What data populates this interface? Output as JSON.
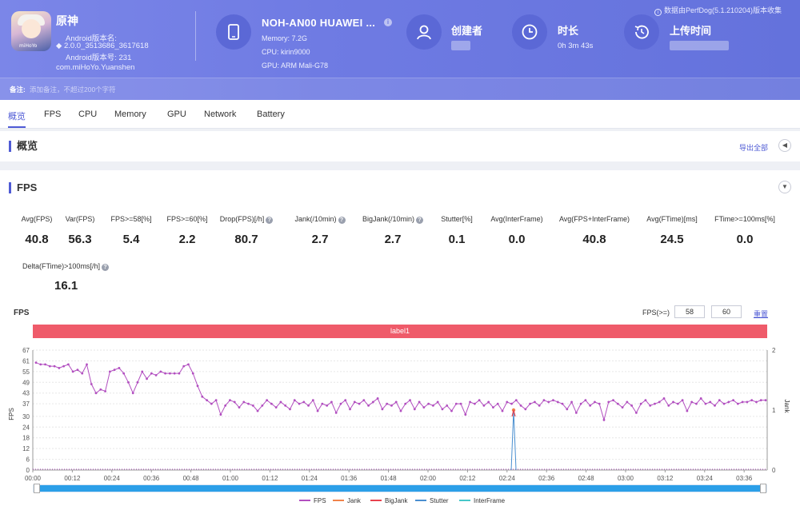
{
  "header": {
    "app_name": "原神",
    "version_name_label": "Android版本名:",
    "version_name": "2.0.0_3513686_3617618",
    "version_code": "Android版本号: 231",
    "package": "com.miHoYo.Yuanshen",
    "icon_tag": "miHoYo",
    "device_name": "NOH-AN00 HUAWEI ...",
    "memory": "Memory: 7.2G",
    "cpu": "CPU: kirin9000",
    "gpu": "GPU: ARM Mali-G78",
    "creator_label": "创建者",
    "duration_label": "时长",
    "duration_value": "0h 3m 43s",
    "upload_label": "上传时间",
    "source_note": "数据由PerfDog(5.1.210204)版本收集",
    "remark_label": "备注:",
    "remark_placeholder": "添加备注，不超过200个字符"
  },
  "tabs": [
    "概览",
    "FPS",
    "CPU",
    "Memory",
    "GPU",
    "Network",
    "Battery"
  ],
  "overview": {
    "title": "概览",
    "export": "导出全部"
  },
  "fps_section": {
    "title": "FPS",
    "metrics": [
      {
        "label": "Avg(FPS)",
        "value": "40.8",
        "help": false
      },
      {
        "label": "Var(FPS)",
        "value": "56.3",
        "help": false
      },
      {
        "label": "FPS>=58[%]",
        "value": "5.4",
        "help": false
      },
      {
        "label": "FPS>=60[%]",
        "value": "2.2",
        "help": false
      },
      {
        "label": "Drop(FPS)[/h]",
        "value": "80.7",
        "help": true
      },
      {
        "label": "Jank(/10min)",
        "value": "2.7",
        "help": true
      },
      {
        "label": "BigJank(/10min)",
        "value": "2.7",
        "help": true
      },
      {
        "label": "Stutter[%]",
        "value": "0.1",
        "help": false
      },
      {
        "label": "Avg(InterFrame)",
        "value": "0.0",
        "help": false
      },
      {
        "label": "Avg(FPS+InterFrame)",
        "value": "40.8",
        "help": false
      },
      {
        "label": "Avg(FTime)[ms]",
        "value": "24.5",
        "help": false
      },
      {
        "label": "FTime>=100ms[%]",
        "value": "0.0",
        "help": false
      }
    ],
    "metric2": {
      "label": "Delta(FTime)>100ms[/h]",
      "value": "16.1"
    },
    "chart_title": "FPS",
    "threshold_label": "FPS(>=)",
    "threshold_low": "58",
    "threshold_high": "60",
    "reset": "重置",
    "label_bar": "label1"
  },
  "chart_data": {
    "type": "line",
    "ylabel": "FPS",
    "ylabel_right": "Jank",
    "yticks": [
      "0",
      "6",
      "12",
      "18",
      "24",
      "30",
      "37",
      "43",
      "49",
      "55",
      "61",
      "67"
    ],
    "yticks_right": [
      "0",
      "1",
      "2"
    ],
    "ylim": [
      0,
      67
    ],
    "ylim_right": [
      0,
      2
    ],
    "xticks": [
      "00:00",
      "00:12",
      "00:24",
      "00:36",
      "00:48",
      "01:00",
      "01:12",
      "01:24",
      "01:36",
      "01:48",
      "02:00",
      "02:12",
      "02:24",
      "02:36",
      "02:48",
      "03:00",
      "03:12",
      "03:24",
      "03:36"
    ],
    "legend": [
      {
        "name": "FPS",
        "color": "#b24fc0"
      },
      {
        "name": "Jank",
        "color": "#f0834a"
      },
      {
        "name": "BigJank",
        "color": "#e8424e"
      },
      {
        "name": "Stutter",
        "color": "#4a8fd0"
      },
      {
        "name": "InterFrame",
        "color": "#46c7c9"
      }
    ],
    "x_seconds": [
      0,
      2,
      4,
      6,
      8,
      10,
      12,
      14,
      16,
      18,
      20,
      22,
      24,
      26,
      28,
      30,
      32,
      34,
      36,
      38,
      40,
      42,
      44,
      46,
      48,
      50,
      52,
      54,
      56,
      58,
      60,
      62,
      64,
      66,
      68,
      70,
      72,
      74,
      76,
      78,
      80,
      82,
      84,
      86,
      88,
      90,
      92,
      94,
      96,
      98,
      100,
      102,
      104,
      106,
      108,
      110,
      112,
      114,
      116,
      118,
      120,
      122,
      124,
      126,
      128,
      130,
      132,
      134,
      136,
      138,
      140,
      142,
      144,
      146,
      148,
      150,
      152,
      154,
      156,
      158,
      160,
      162,
      164,
      166,
      168,
      170,
      172,
      174,
      176,
      178,
      180,
      182,
      184,
      186,
      188,
      190,
      192,
      194,
      196,
      198,
      200,
      202,
      204,
      206,
      208,
      210,
      212,
      214,
      216,
      218,
      220,
      222
    ],
    "fps": [
      60,
      59,
      59,
      58,
      58,
      57,
      58,
      59,
      55,
      56,
      54,
      59,
      48,
      43,
      45,
      44,
      55,
      56,
      57,
      54,
      49,
      43,
      49,
      55,
      51,
      54,
      53,
      55,
      54,
      54,
      54,
      54,
      58,
      59,
      54,
      47,
      41,
      39,
      37,
      39,
      31,
      36,
      39,
      38,
      35,
      38,
      37,
      36,
      33,
      36,
      39,
      37,
      35,
      38,
      36,
      34,
      39,
      37,
      38,
      36,
      39,
      33,
      37,
      36,
      38,
      32,
      37,
      39,
      34,
      38,
      37,
      39,
      36,
      38,
      40,
      34,
      37,
      36,
      38,
      33,
      37,
      39,
      34,
      38,
      35,
      37,
      36,
      38,
      34,
      36,
      33,
      37,
      37,
      31,
      38,
      37,
      39,
      36,
      38,
      35,
      37,
      33,
      38,
      37,
      39,
      36,
      34,
      37,
      38,
      36,
      39,
      38
    ],
    "fps_tail": [
      39,
      38,
      37,
      34,
      38,
      32,
      37,
      39,
      36,
      38,
      37,
      28,
      38,
      39,
      37,
      35,
      38,
      36,
      32,
      37,
      39,
      36,
      37,
      38,
      40,
      36,
      38,
      37,
      39,
      33,
      38,
      37,
      40,
      37,
      38,
      36,
      39,
      37,
      38,
      39,
      37,
      38,
      38,
      39,
      38,
      39,
      39
    ],
    "jank_points": [
      [
        146,
        1
      ]
    ],
    "bigjank_points": [
      [
        146,
        1
      ]
    ]
  },
  "legend_labels": [
    "FPS",
    "Jank",
    "BigJank",
    "Stutter",
    "InterFrame"
  ]
}
